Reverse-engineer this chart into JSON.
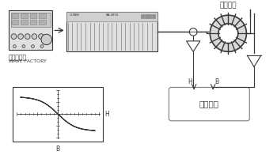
{
  "label_signal_gen_cn": "信号发生器",
  "label_signal_gen_en": "WAVE FACTORY",
  "label_mag_material": "磁性材料",
  "label_oscilloscope": "示波器等",
  "label_H": "H",
  "label_B": "B",
  "dark": "#383838",
  "mid": "#888888",
  "light": "#bbbbbb",
  "fill_light": "#e0e0e0",
  "fill_mid": "#cccccc"
}
